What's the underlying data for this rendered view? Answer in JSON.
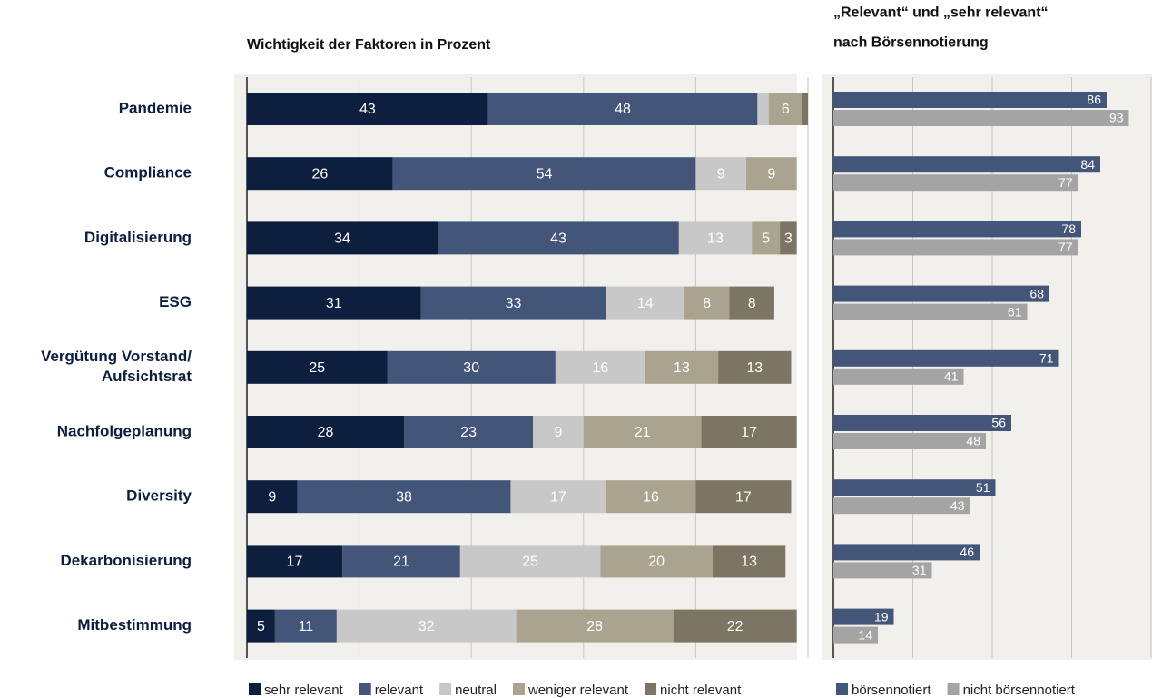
{
  "chart_data": [
    {
      "type": "stacked_bar",
      "title": "Wichtigkeit der Faktoren in Prozent",
      "categories": [
        "Pandemie",
        "Compliance",
        "Digitalisierung",
        "ESG",
        "Vergütung Vorstand/\nAufsichtsrat",
        "Nachfolgeplanung",
        "Diversity",
        "Dekarbonisierung",
        "Mitbestimmung"
      ],
      "series": [
        {
          "name": "sehr relevant",
          "color": "#0e1e3e",
          "values": [
            43,
            26,
            34,
            31,
            25,
            28,
            9,
            17,
            5
          ]
        },
        {
          "name": "relevant",
          "color": "#44557a",
          "values": [
            48,
            54,
            43,
            33,
            30,
            23,
            38,
            21,
            11
          ]
        },
        {
          "name": "neutral",
          "color": "#c8c8c8",
          "values": [
            2,
            9,
            13,
            14,
            16,
            9,
            17,
            25,
            32
          ],
          "value_labels": [
            null,
            9,
            13,
            14,
            16,
            9,
            17,
            25,
            32
          ]
        },
        {
          "name": "weniger relevant",
          "color": "#aaa38f",
          "values": [
            6,
            9,
            5,
            8,
            13,
            21,
            16,
            20,
            28
          ]
        },
        {
          "name": "nicht relevant",
          "color": "#7d7563",
          "values": [
            1,
            0,
            3,
            8,
            13,
            17,
            17,
            13,
            22
          ],
          "value_labels": [
            null,
            null,
            3,
            8,
            13,
            17,
            17,
            13,
            22
          ]
        }
      ],
      "xlim": [
        0,
        100
      ],
      "xticks": [
        0,
        20,
        40,
        60,
        80,
        100
      ],
      "grid": true
    },
    {
      "type": "grouped_bar",
      "title": "„Relevant“ und „sehr relevant“\nnach Börsennotierung",
      "series": [
        {
          "name": "börsennotiert",
          "color": "#44557a",
          "values": [
            86,
            84,
            78,
            68,
            71,
            56,
            51,
            46,
            19
          ]
        },
        {
          "name": "nicht börsennotiert",
          "color": "#a4a4a4",
          "values": [
            93,
            77,
            77,
            61,
            41,
            48,
            43,
            31,
            14
          ]
        }
      ],
      "xlim": [
        0,
        100
      ],
      "xticks": [
        0,
        25,
        50,
        75,
        100
      ],
      "grid": true
    }
  ]
}
